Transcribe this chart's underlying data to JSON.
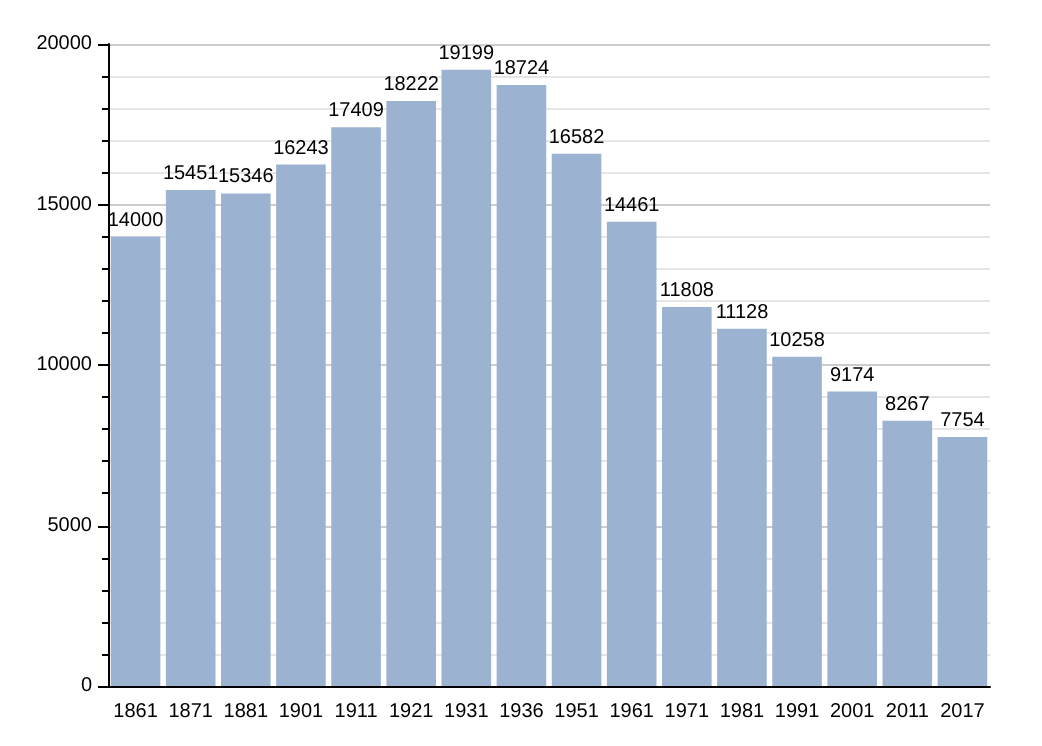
{
  "chart_data": {
    "type": "bar",
    "categories": [
      "1861",
      "1871",
      "1881",
      "1901",
      "1911",
      "1921",
      "1931",
      "1936",
      "1951",
      "1961",
      "1971",
      "1981",
      "1991",
      "2001",
      "2011",
      "2017"
    ],
    "values": [
      14000,
      15451,
      15346,
      16243,
      17409,
      18222,
      19199,
      18724,
      16582,
      14461,
      11808,
      11128,
      10258,
      9174,
      8267,
      7754
    ],
    "color": "#9bb3d1",
    "data_labels": true,
    "ylim": [
      0,
      20000
    ],
    "yticks": [
      0,
      5000,
      10000,
      15000,
      20000
    ],
    "grid": "y"
  }
}
